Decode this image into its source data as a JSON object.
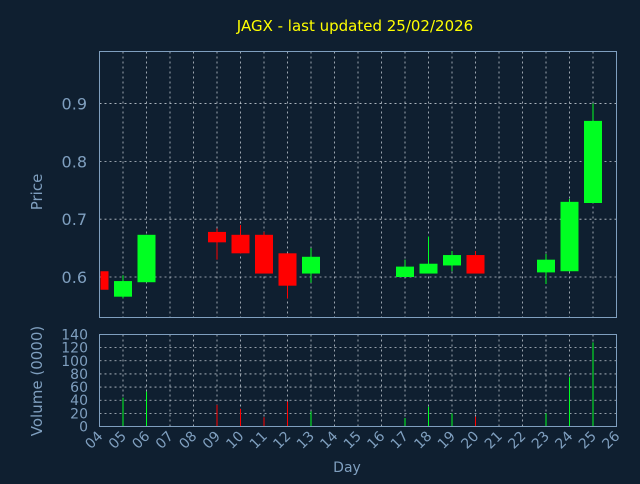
{
  "colors": {
    "background": "#0f1f30",
    "frame": "#7f9fbf",
    "grid": "#c0c8d0",
    "title": "#ffff00",
    "axis_label": "#7f9fbf",
    "tick_label": "#7f9fbf",
    "up": "#00ff22",
    "down": "#ff0000"
  },
  "chart_data": [
    {
      "type": "candlestick",
      "title": "JAGX - last updated 25/02/2026",
      "ylabel": "Price",
      "ylim": [
        0.53,
        0.99
      ],
      "yticks": [
        0.6,
        0.7,
        0.8,
        0.9
      ],
      "ytick_labels": [
        "0.6",
        "0.7",
        "0.8",
        "0.9"
      ],
      "grid": true,
      "candles": [
        {
          "day": "04",
          "open": 0.61,
          "high": 0.61,
          "low": 0.578,
          "close": 0.578
        },
        {
          "day": "05",
          "open": 0.566,
          "high": 0.603,
          "low": 0.563,
          "close": 0.593
        },
        {
          "day": "06",
          "open": 0.591,
          "high": 0.673,
          "low": 0.591,
          "close": 0.673
        },
        {
          "day": "09",
          "open": 0.678,
          "high": 0.684,
          "low": 0.63,
          "close": 0.66
        },
        {
          "day": "10",
          "open": 0.673,
          "high": 0.69,
          "low": 0.641,
          "close": 0.641
        },
        {
          "day": "11",
          "open": 0.673,
          "high": 0.678,
          "low": 0.606,
          "close": 0.606
        },
        {
          "day": "12",
          "open": 0.641,
          "high": 0.641,
          "low": 0.563,
          "close": 0.585
        },
        {
          "day": "13",
          "open": 0.606,
          "high": 0.65,
          "low": 0.59,
          "close": 0.635
        },
        {
          "day": "17",
          "open": 0.6,
          "high": 0.63,
          "low": 0.6,
          "close": 0.618
        },
        {
          "day": "18",
          "open": 0.606,
          "high": 0.67,
          "low": 0.606,
          "close": 0.623
        },
        {
          "day": "19",
          "open": 0.62,
          "high": 0.645,
          "low": 0.61,
          "close": 0.638
        },
        {
          "day": "20",
          "open": 0.638,
          "high": 0.645,
          "low": 0.606,
          "close": 0.606
        },
        {
          "day": "23",
          "open": 0.608,
          "high": 0.64,
          "low": 0.588,
          "close": 0.63
        },
        {
          "day": "24",
          "open": 0.61,
          "high": 0.735,
          "low": 0.61,
          "close": 0.73
        },
        {
          "day": "25",
          "open": 0.728,
          "high": 0.9,
          "low": 0.728,
          "close": 0.87
        }
      ]
    },
    {
      "type": "bar",
      "xlabel": "Day",
      "ylabel": "Volume (0000)",
      "ylim": [
        0,
        140
      ],
      "yticks": [
        0,
        20,
        40,
        60,
        80,
        100,
        120,
        140
      ],
      "ytick_labels": [
        "0",
        "20",
        "40",
        "60",
        "80",
        "100",
        "120",
        "140"
      ],
      "categories": [
        "04",
        "05",
        "06",
        "07",
        "08",
        "09",
        "10",
        "11",
        "12",
        "13",
        "14",
        "15",
        "16",
        "17",
        "18",
        "19",
        "20",
        "21",
        "22",
        "23",
        "24",
        "25",
        "26"
      ],
      "values": [
        3,
        44,
        53,
        0,
        0,
        33,
        27,
        14,
        38,
        23,
        0,
        0,
        0,
        13,
        30,
        20,
        15,
        0,
        0,
        20,
        75,
        128,
        0
      ],
      "bar_direction": [
        "down",
        "up",
        "up",
        "up",
        "up",
        "down",
        "down",
        "down",
        "down",
        "up",
        "up",
        "up",
        "up",
        "up",
        "up",
        "up",
        "down",
        "up",
        "up",
        "up",
        "up",
        "up",
        "up"
      ],
      "grid": true
    }
  ]
}
